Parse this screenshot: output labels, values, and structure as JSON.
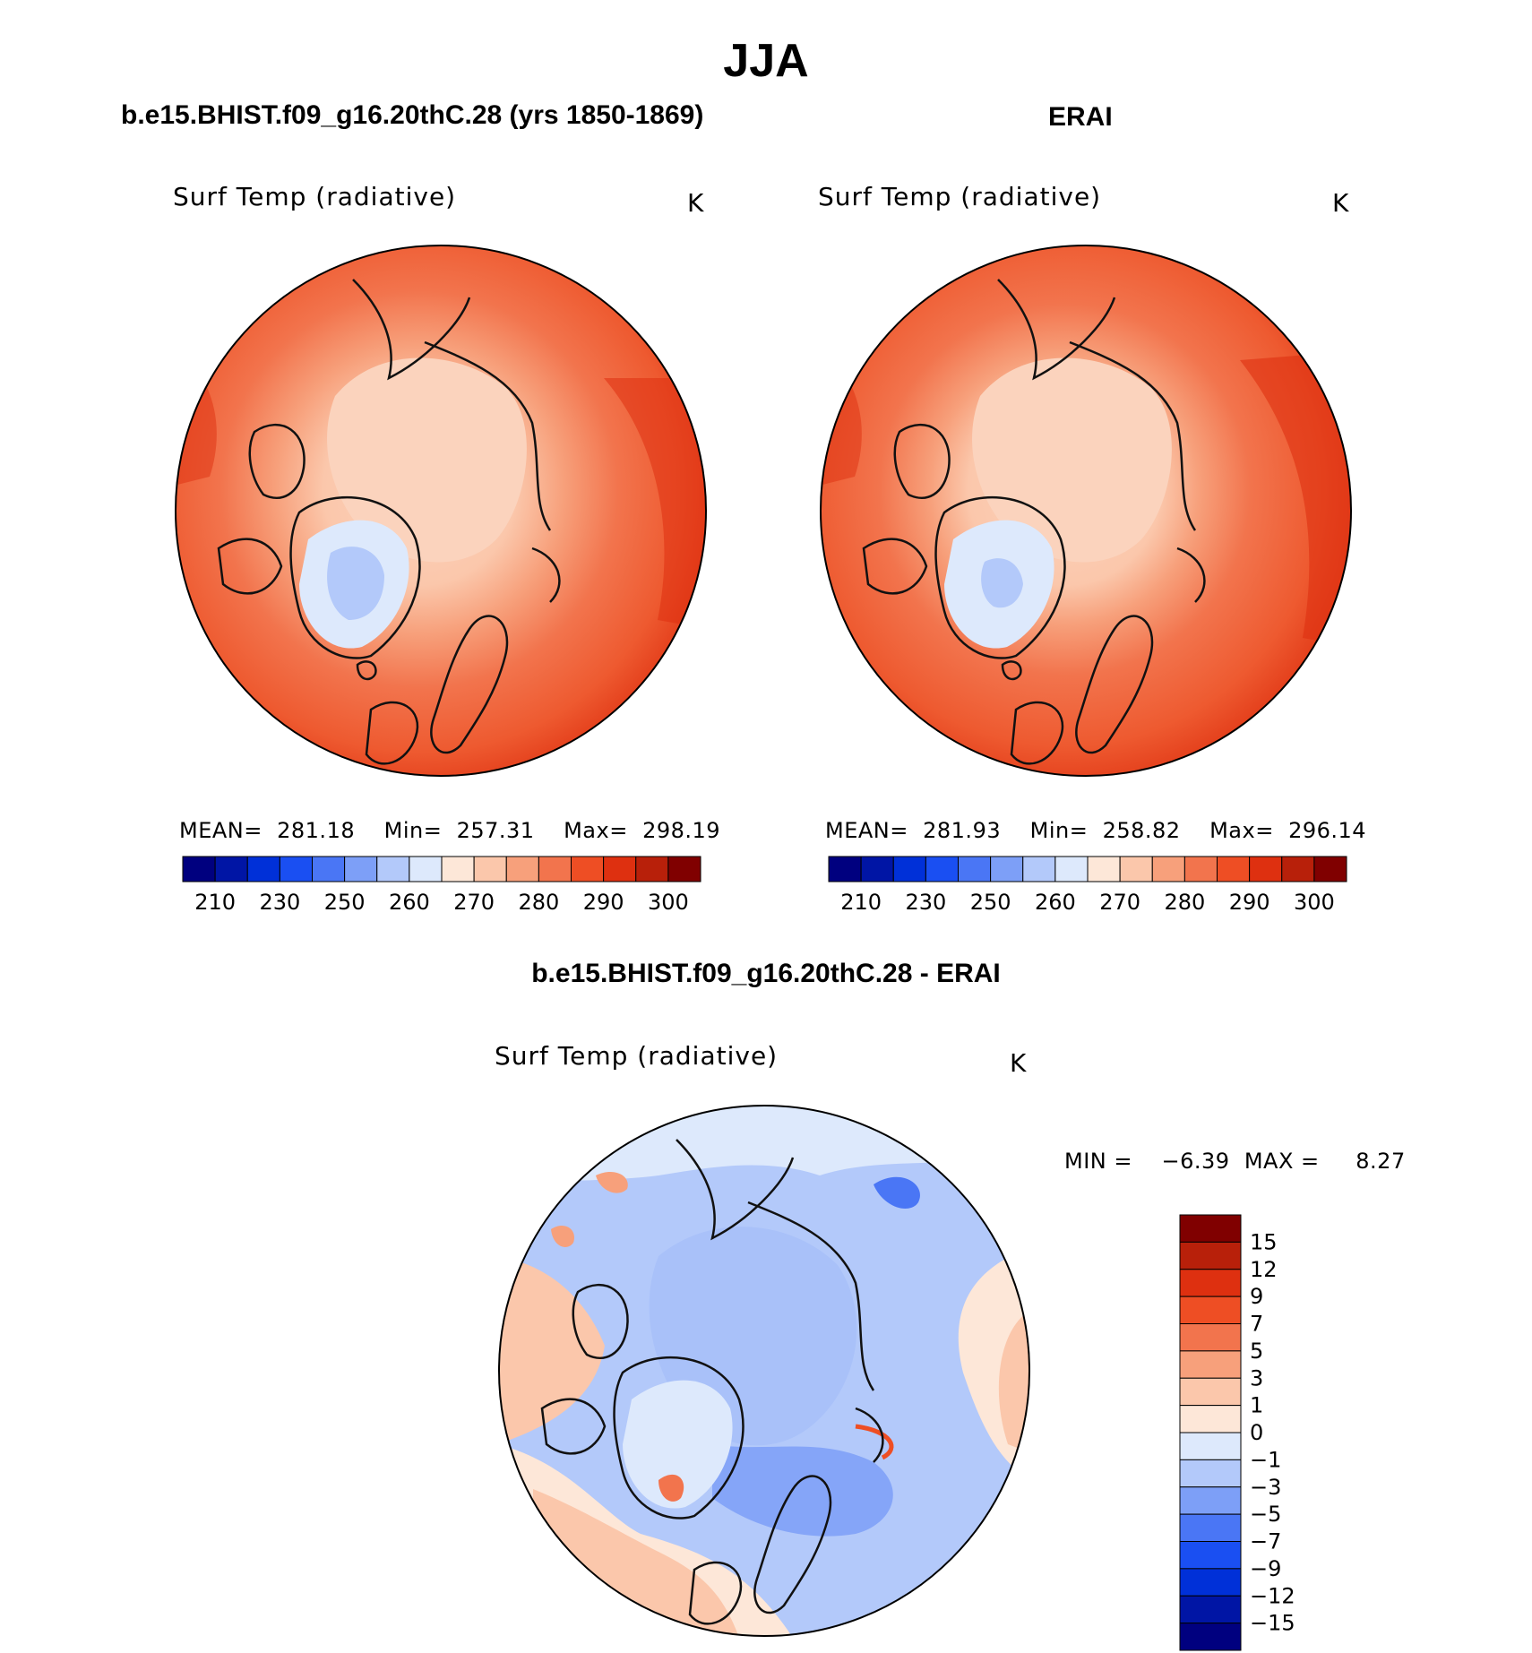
{
  "figure": {
    "title": "JJA",
    "left_panel_title": "b.e15.BHIST.f09_g16.20thC.28 (yrs 1850-1869)",
    "right_panel_title": "ERAI",
    "diff_panel_title": "b.e15.BHIST.f09_g16.20thC.28 - ERAI"
  },
  "panels": {
    "left": {
      "variable": "Surf Temp (radiative)",
      "units": "K",
      "mean_label": "MEAN=",
      "mean": "281.18",
      "min_label": "Min=",
      "min": "257.31",
      "max_label": "Max=",
      "max": "298.19"
    },
    "right": {
      "variable": "Surf Temp (radiative)",
      "units": "K",
      "mean_label": "MEAN=",
      "mean": "281.93",
      "min_label": "Min=",
      "min": "258.82",
      "max_label": "Max=",
      "max": "296.14"
    },
    "diff": {
      "variable": "Surf Temp (radiative)",
      "units": "K",
      "min_label": "MIN =",
      "min": "−6.39",
      "max_label": "MAX =",
      "max": "8.27"
    }
  },
  "colorbars": {
    "absolute": {
      "colors": [
        "#00007f",
        "#0015a5",
        "#0030d8",
        "#1a4ff2",
        "#4a76f5",
        "#7d9ff7",
        "#b3c9fa",
        "#dde9fc",
        "#fde7d8",
        "#fbc7ab",
        "#f7a07b",
        "#f2744d",
        "#ee4e24",
        "#de3010",
        "#b8200a",
        "#800000"
      ],
      "tick_labels": [
        "210",
        "230",
        "250",
        "260",
        "270",
        "280",
        "290",
        "300"
      ]
    },
    "difference": {
      "colors": [
        "#800000",
        "#b8200a",
        "#de3010",
        "#ee4e24",
        "#f2744d",
        "#f7a07b",
        "#fbc7ab",
        "#fde7d8",
        "#dde9fc",
        "#b3c9fa",
        "#7d9ff7",
        "#4a76f5",
        "#1a4ff2",
        "#0030d8",
        "#0015a5",
        "#00007f"
      ],
      "tick_labels": [
        "15",
        "12",
        "9",
        "7",
        "5",
        "3",
        "1",
        "0",
        "−1",
        "−3",
        "−5",
        "−7",
        "−9",
        "−12",
        "−15"
      ]
    }
  }
}
